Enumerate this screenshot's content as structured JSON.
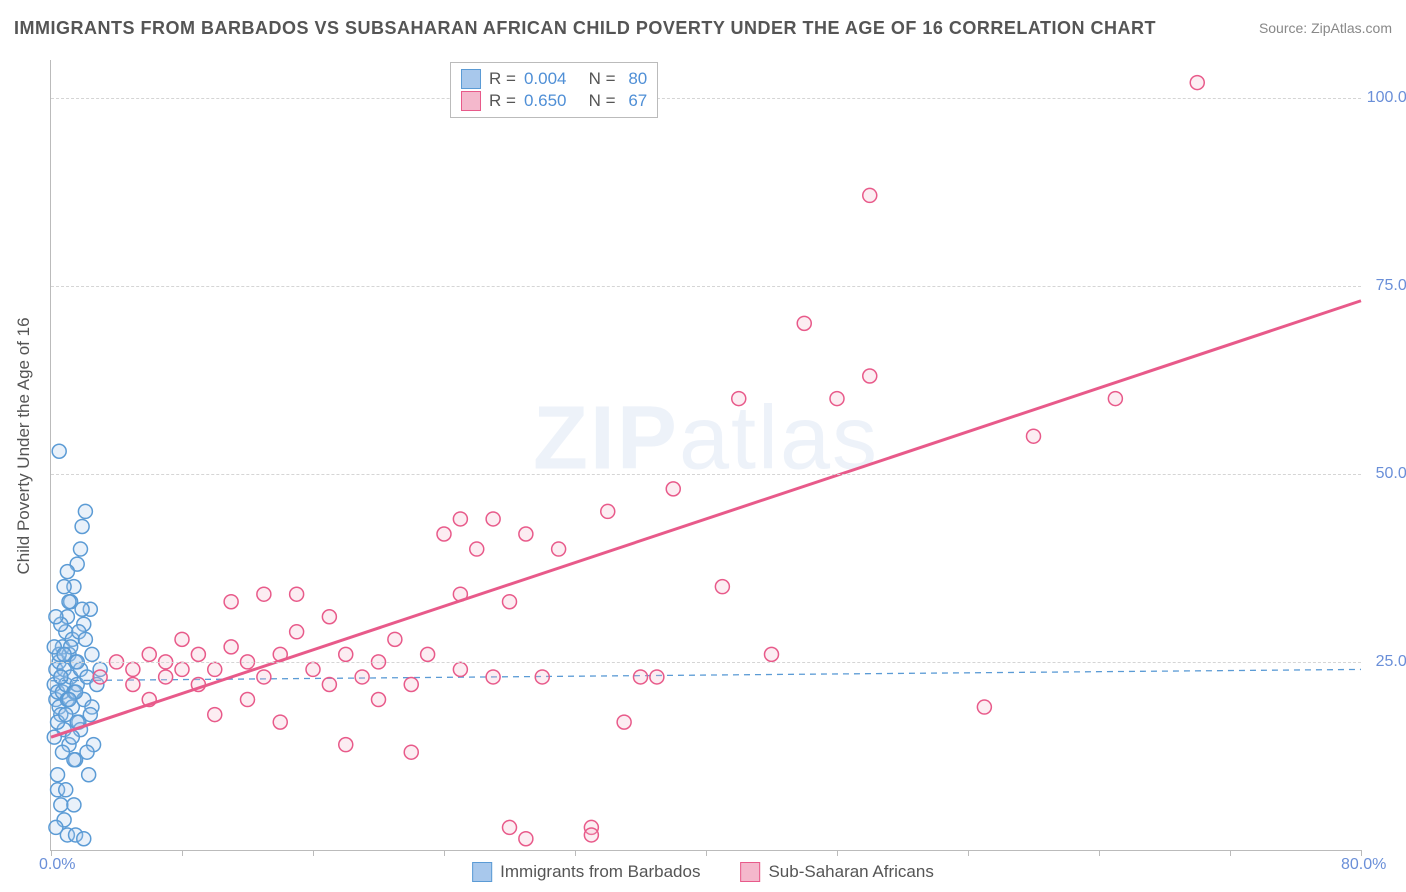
{
  "title": "IMMIGRANTS FROM BARBADOS VS SUBSAHARAN AFRICAN CHILD POVERTY UNDER THE AGE OF 16 CORRELATION CHART",
  "source_label": "Source: ZipAtlas.com",
  "y_axis_title": "Child Poverty Under the Age of 16",
  "watermark_bold": "ZIP",
  "watermark_thin": "atlas",
  "chart": {
    "type": "scatter",
    "xlim": [
      0,
      80
    ],
    "ylim": [
      0,
      105
    ],
    "x_origin_label": "0.0%",
    "x_max_label": "80.0%",
    "x_ticks": [
      0,
      8,
      16,
      24,
      32,
      40,
      48,
      56,
      64,
      72,
      80
    ],
    "y_gridlines": [
      25,
      50,
      75,
      100
    ],
    "y_tick_labels": [
      "25.0%",
      "50.0%",
      "75.0%",
      "100.0%"
    ],
    "background_color": "#ffffff",
    "grid_color": "#d5d5d5",
    "axis_color": "#bbbbbb",
    "tick_label_color": "#6a8fd8",
    "marker_radius": 7,
    "marker_stroke_width": 1.5,
    "marker_fill_opacity": 0.25,
    "trendline_width_pink": 3,
    "trendline_width_blue": 1.3,
    "trendline_dash_blue": "6,5"
  },
  "series": [
    {
      "name": "Immigrants from Barbados",
      "color_stroke": "#5b9bd5",
      "color_fill": "#a8c8ec",
      "R": "0.004",
      "N": "80",
      "trendline": {
        "x1": 0,
        "y1": 22.5,
        "x2": 80,
        "y2": 24.0,
        "dashed": true
      },
      "points": [
        [
          0.2,
          22
        ],
        [
          0.3,
          20
        ],
        [
          0.3,
          24
        ],
        [
          0.4,
          21
        ],
        [
          0.5,
          19
        ],
        [
          0.5,
          25
        ],
        [
          0.6,
          23
        ],
        [
          0.6,
          18
        ],
        [
          0.7,
          27
        ],
        [
          0.7,
          21
        ],
        [
          0.8,
          24
        ],
        [
          0.8,
          16
        ],
        [
          0.9,
          29
        ],
        [
          0.9,
          22
        ],
        [
          1.0,
          31
        ],
        [
          1.0,
          20
        ],
        [
          1.1,
          26
        ],
        [
          1.1,
          14
        ],
        [
          1.2,
          33
        ],
        [
          1.2,
          23
        ],
        [
          1.3,
          19
        ],
        [
          1.3,
          28
        ],
        [
          1.4,
          35
        ],
        [
          1.4,
          21
        ],
        [
          1.5,
          12
        ],
        [
          1.5,
          25
        ],
        [
          1.6,
          38
        ],
        [
          1.6,
          22
        ],
        [
          1.7,
          17
        ],
        [
          1.8,
          40
        ],
        [
          1.8,
          24
        ],
        [
          1.9,
          43
        ],
        [
          2.0,
          20
        ],
        [
          2.0,
          30
        ],
        [
          2.1,
          45
        ],
        [
          2.2,
          23
        ],
        [
          2.3,
          10
        ],
        [
          2.4,
          32
        ],
        [
          2.5,
          26
        ],
        [
          2.6,
          14
        ],
        [
          0.5,
          53
        ],
        [
          0.4,
          8
        ],
        [
          0.6,
          6
        ],
        [
          0.8,
          4
        ],
        [
          1.0,
          2
        ],
        [
          0.3,
          3
        ],
        [
          1.5,
          2
        ],
        [
          2.0,
          1.5
        ],
        [
          0.2,
          15
        ],
        [
          0.4,
          17
        ],
        [
          1.8,
          16
        ],
        [
          2.2,
          13
        ],
        [
          2.5,
          19
        ],
        [
          0.6,
          30
        ],
        [
          1.2,
          27
        ],
        [
          1.6,
          25
        ],
        [
          0.9,
          18
        ],
        [
          1.4,
          12
        ],
        [
          1.1,
          33
        ],
        [
          1.7,
          29
        ],
        [
          0.5,
          26
        ],
        [
          2.8,
          22
        ],
        [
          3.0,
          24
        ],
        [
          0.2,
          27
        ],
        [
          0.3,
          31
        ],
        [
          0.7,
          13
        ],
        [
          0.8,
          35
        ],
        [
          1.0,
          37
        ],
        [
          1.3,
          15
        ],
        [
          1.9,
          32
        ],
        [
          0.4,
          10
        ],
        [
          0.9,
          8
        ],
        [
          1.4,
          6
        ],
        [
          2.1,
          28
        ],
        [
          0.6,
          23
        ],
        [
          1.5,
          21
        ],
        [
          2.4,
          18
        ],
        [
          0.8,
          26
        ],
        [
          1.1,
          20
        ],
        [
          1.6,
          17
        ]
      ]
    },
    {
      "name": "Sub-Saharan Africans",
      "color_stroke": "#e85a8a",
      "color_fill": "#f4b8cc",
      "R": "0.650",
      "N": "67",
      "trendline": {
        "x1": 0,
        "y1": 15,
        "x2": 80,
        "y2": 73,
        "dashed": false
      },
      "points": [
        [
          3,
          23
        ],
        [
          4,
          25
        ],
        [
          5,
          22
        ],
        [
          5,
          24
        ],
        [
          6,
          26
        ],
        [
          6,
          20
        ],
        [
          7,
          23
        ],
        [
          7,
          25
        ],
        [
          8,
          24
        ],
        [
          8,
          28
        ],
        [
          9,
          22
        ],
        [
          9,
          26
        ],
        [
          10,
          24
        ],
        [
          10,
          18
        ],
        [
          11,
          27
        ],
        [
          11,
          33
        ],
        [
          12,
          25
        ],
        [
          12,
          20
        ],
        [
          13,
          23
        ],
        [
          13,
          34
        ],
        [
          14,
          26
        ],
        [
          14,
          17
        ],
        [
          15,
          29
        ],
        [
          15,
          34
        ],
        [
          16,
          24
        ],
        [
          17,
          22
        ],
        [
          17,
          31
        ],
        [
          18,
          14
        ],
        [
          18,
          26
        ],
        [
          19,
          23
        ],
        [
          20,
          25
        ],
        [
          20,
          20
        ],
        [
          21,
          28
        ],
        [
          22,
          22
        ],
        [
          22,
          13
        ],
        [
          23,
          26
        ],
        [
          24,
          42
        ],
        [
          25,
          24
        ],
        [
          25,
          34
        ],
        [
          26,
          40
        ],
        [
          27,
          44
        ],
        [
          28,
          33
        ],
        [
          29,
          42
        ],
        [
          30,
          23
        ],
        [
          29,
          1.5
        ],
        [
          33,
          3
        ],
        [
          35,
          17
        ],
        [
          37,
          23
        ],
        [
          41,
          35
        ],
        [
          38,
          48
        ],
        [
          44,
          26
        ],
        [
          42,
          60
        ],
        [
          46,
          70
        ],
        [
          50,
          63
        ],
        [
          48,
          60
        ],
        [
          50,
          87
        ],
        [
          57,
          19
        ],
        [
          60,
          55
        ],
        [
          65,
          60
        ],
        [
          70,
          102
        ],
        [
          28,
          3
        ],
        [
          33,
          2
        ],
        [
          25,
          44
        ],
        [
          27,
          23
        ],
        [
          36,
          23
        ],
        [
          31,
          40
        ],
        [
          34,
          45
        ]
      ]
    }
  ],
  "stats_legend_title_color": "#555555",
  "bottom_legend": {
    "items": [
      "Immigrants from Barbados",
      "Sub-Saharan Africans"
    ]
  }
}
